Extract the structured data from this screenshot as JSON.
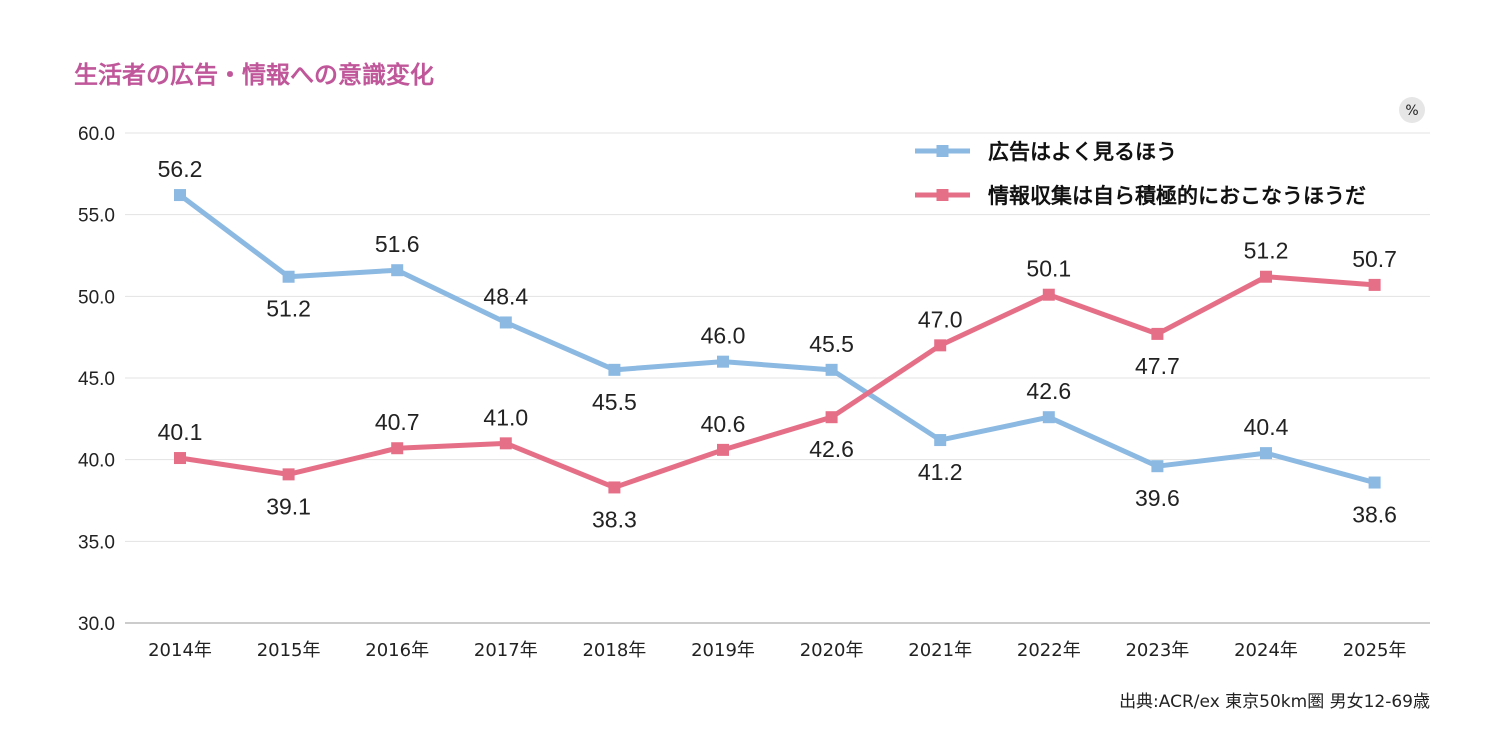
{
  "colors": {
    "title": "#c0579a",
    "series_blue": "#8bb9e2",
    "series_pink": "#e66f88",
    "grid": "#e3e3e3",
    "unit_badge": "#e6e6e6"
  },
  "chart_data": {
    "type": "line",
    "title": "生活者の広告・情報への意識変化",
    "unit": "%",
    "categories": [
      "2014年",
      "2015年",
      "2016年",
      "2017年",
      "2018年",
      "2019年",
      "2020年",
      "2021年",
      "2022年",
      "2023年",
      "2024年",
      "2025年"
    ],
    "ylim": [
      30,
      60
    ],
    "yticks": [
      "60.0",
      "55.0",
      "50.0",
      "45.0",
      "40.0",
      "35.0",
      "30.0"
    ],
    "grid": true,
    "legend_position": "top-right",
    "series": [
      {
        "name": "広告はよく見るほう",
        "color": "#8bb9e2",
        "values": [
          56.2,
          51.2,
          51.6,
          48.4,
          45.5,
          46.0,
          45.5,
          41.2,
          42.6,
          39.6,
          40.4,
          38.6
        ],
        "labels": [
          "56.2",
          "51.2",
          "51.6",
          "48.4",
          "45.5",
          "46.0",
          "45.5",
          "41.2",
          "42.6",
          "39.6",
          "40.4",
          "38.6"
        ],
        "label_pos": [
          "above",
          "below",
          "above",
          "above",
          "below",
          "above",
          "above",
          "below",
          "above",
          "below",
          "above",
          "below"
        ]
      },
      {
        "name": "情報収集は自ら積極的におこなうほうだ",
        "color": "#e66f88",
        "values": [
          40.1,
          39.1,
          40.7,
          41.0,
          38.3,
          40.6,
          42.6,
          47.0,
          50.1,
          47.7,
          51.2,
          50.7
        ],
        "labels": [
          "40.1",
          "39.1",
          "40.7",
          "41.0",
          "38.3",
          "40.6",
          "42.6",
          "47.0",
          "50.1",
          "47.7",
          "51.2",
          "50.7"
        ],
        "label_pos": [
          "above",
          "below",
          "above",
          "above",
          "below",
          "above",
          "below",
          "above",
          "above",
          "below",
          "above",
          "above"
        ]
      }
    ],
    "source": "出典:ACR/ex 東京50km圏 男女12-69歳"
  }
}
